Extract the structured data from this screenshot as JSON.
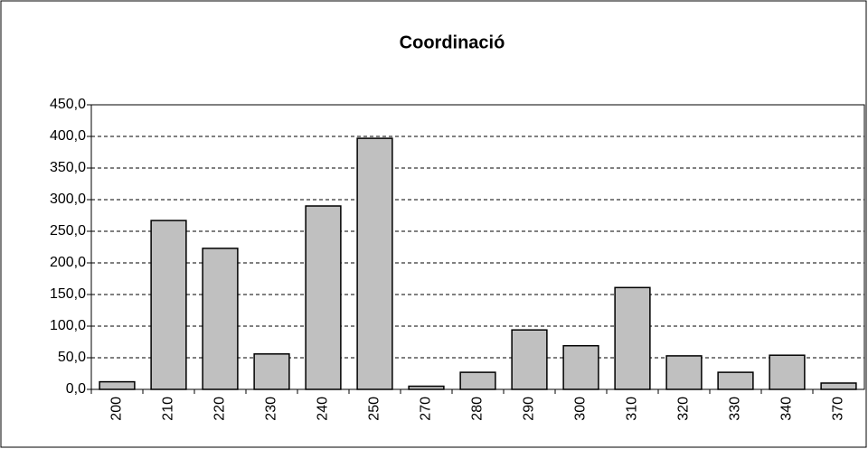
{
  "chart_data": {
    "type": "bar",
    "title": "Coordinació",
    "categories": [
      "200",
      "210",
      "220",
      "230",
      "240",
      "250",
      "270",
      "280",
      "290",
      "300",
      "310",
      "320",
      "330",
      "340",
      "370"
    ],
    "values": [
      12,
      267,
      223,
      56,
      290,
      397,
      5,
      27,
      94,
      69,
      161,
      53,
      27,
      54,
      10
    ],
    "color": "#c0c0c0",
    "ylim": [
      0,
      450
    ],
    "yticks": [
      {
        "value": 0,
        "label": "0,0"
      },
      {
        "value": 50,
        "label": "50,0"
      },
      {
        "value": 100,
        "label": "100,0"
      },
      {
        "value": 150,
        "label": "150,0"
      },
      {
        "value": 200,
        "label": "200,0"
      },
      {
        "value": 250,
        "label": "250,0"
      },
      {
        "value": 300,
        "label": "300,0"
      },
      {
        "value": 350,
        "label": "350,0"
      },
      {
        "value": 400,
        "label": "400,0"
      },
      {
        "value": 450,
        "label": "450,0"
      }
    ],
    "grid": true
  }
}
